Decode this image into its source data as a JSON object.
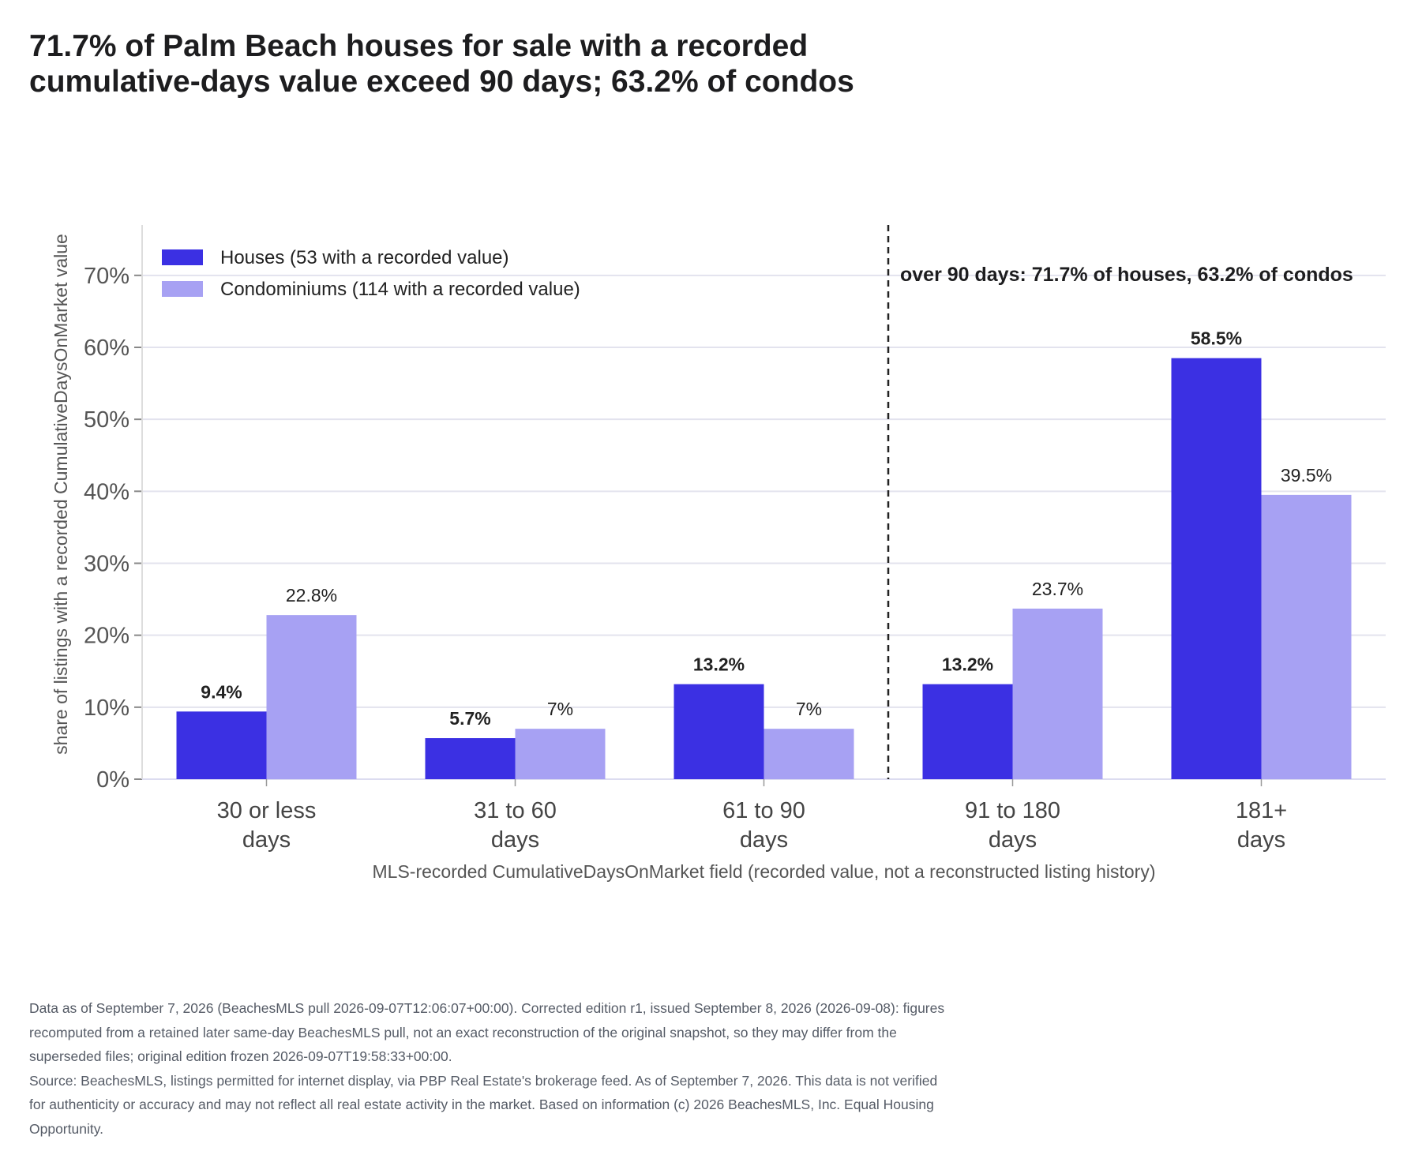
{
  "title_lines": [
    "71.7% of Palm Beach houses for sale with a recorded",
    "cumulative-days value exceed 90 days; 63.2% of condos"
  ],
  "chart_data": {
    "type": "bar",
    "title": "71.7% of Palm Beach houses for sale with a recorded cumulative-days value exceed 90 days; 63.2% of condos",
    "categories": [
      [
        "30 or less",
        "days"
      ],
      [
        "31 to 60",
        "days"
      ],
      [
        "61 to 90",
        "days"
      ],
      [
        "91 to 180",
        "days"
      ],
      [
        "181+",
        "days"
      ]
    ],
    "series": [
      {
        "name": "Houses (53 with a recorded value)",
        "color": "#3b30e3",
        "values": [
          9.4,
          5.7,
          13.2,
          13.2,
          58.5
        ],
        "labels": [
          "9.4%",
          "5.7%",
          "13.2%",
          "13.2%",
          "58.5%"
        ],
        "label_weight": "bold"
      },
      {
        "name": "Condominiums (114 with a recorded value)",
        "color": "#a7a1f3",
        "values": [
          22.8,
          7.0,
          7.0,
          23.7,
          39.5
        ],
        "labels": [
          "22.8%",
          "7%",
          "7%",
          "23.7%",
          "39.5%"
        ],
        "label_weight": "normal"
      }
    ],
    "xlabel": "MLS-recorded CumulativeDaysOnMarket field (recorded value, not a reconstructed listing history)",
    "ylabel": "share of listings with a recorded CumulativeDaysOnMarket value",
    "ylim": [
      0,
      77
    ],
    "yticks": [
      0,
      10,
      20,
      30,
      40,
      50,
      60,
      70
    ],
    "ytick_labels": [
      "0%",
      "10%",
      "20%",
      "30%",
      "40%",
      "50%",
      "60%",
      "70%"
    ],
    "grid": "horizontal",
    "legend_position": "top-left",
    "divider": {
      "between_categories": [
        2,
        3
      ],
      "style": "dashed"
    },
    "annotation": "over 90 days: 71.7% of houses, 63.2% of condos"
  },
  "footnote_lines": [
    "Data as of September 7, 2026 (BeachesMLS pull 2026-09-07T12:06:07+00:00). Corrected edition r1, issued September 8, 2026 (2026-09-08): figures",
    "recomputed from a retained later same-day BeachesMLS pull, not an exact reconstruction of the original snapshot, so they may differ from the",
    "superseded files; original edition frozen 2026-09-07T19:58:33+00:00.",
    "Source: BeachesMLS, listings permitted for internet display, via PBP Real Estate's brokerage feed. As of September 7, 2026. This data is not verified",
    "for authenticity or accuracy and may not reflect all real estate activity in the market. Based on information (c) 2026 BeachesMLS, Inc. Equal Housing",
    "Opportunity."
  ]
}
